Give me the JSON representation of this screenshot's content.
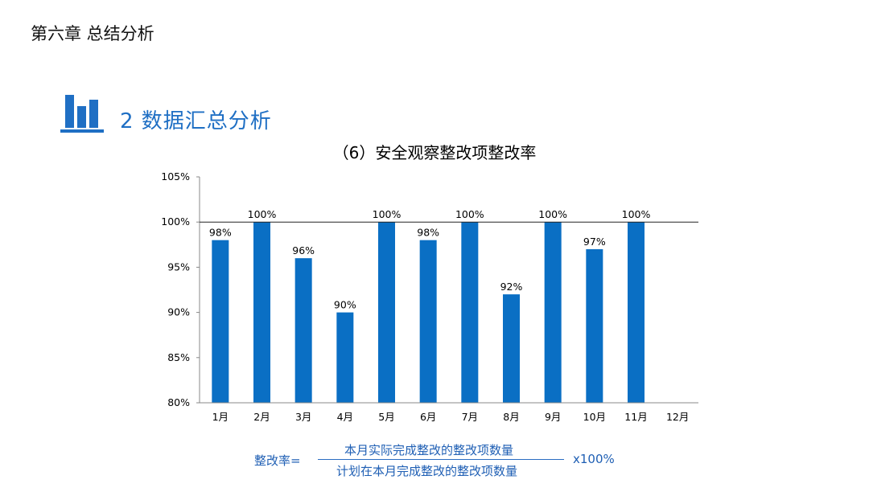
{
  "header": {
    "chapter_title": "第六章 总结分析"
  },
  "section": {
    "title": "2 数据汇总分析",
    "icon": "bar-chart-icon"
  },
  "colors": {
    "accent": "#1f6fc4",
    "bar": "#0a6fc4",
    "formula": "#1f5fb4"
  },
  "chart_data": {
    "type": "bar",
    "title": "（6）安全观察整改项整改率",
    "categories": [
      "1月",
      "2月",
      "3月",
      "4月",
      "5月",
      "6月",
      "7月",
      "8月",
      "9月",
      "10月",
      "11月",
      "12月"
    ],
    "values": [
      98,
      100,
      96,
      90,
      100,
      98,
      100,
      92,
      100,
      97,
      100,
      null
    ],
    "data_labels": [
      "98%",
      "100%",
      "96%",
      "90%",
      "100%",
      "98%",
      "100%",
      "92%",
      "100%",
      "97%",
      "100%",
      ""
    ],
    "ylim": [
      80,
      105
    ],
    "y_ticks": [
      80,
      85,
      90,
      95,
      100,
      105
    ],
    "y_tick_labels": [
      "80%",
      "85%",
      "90%",
      "95%",
      "100%",
      "105%"
    ],
    "reference_line": 100,
    "grid": false,
    "legend": "none"
  },
  "formula": {
    "lhs": "整改率=",
    "numerator": "本月实际完成整改的整改项数量",
    "denominator": "计划在本月完成整改的整改项数量",
    "multiplier": "x100%"
  }
}
